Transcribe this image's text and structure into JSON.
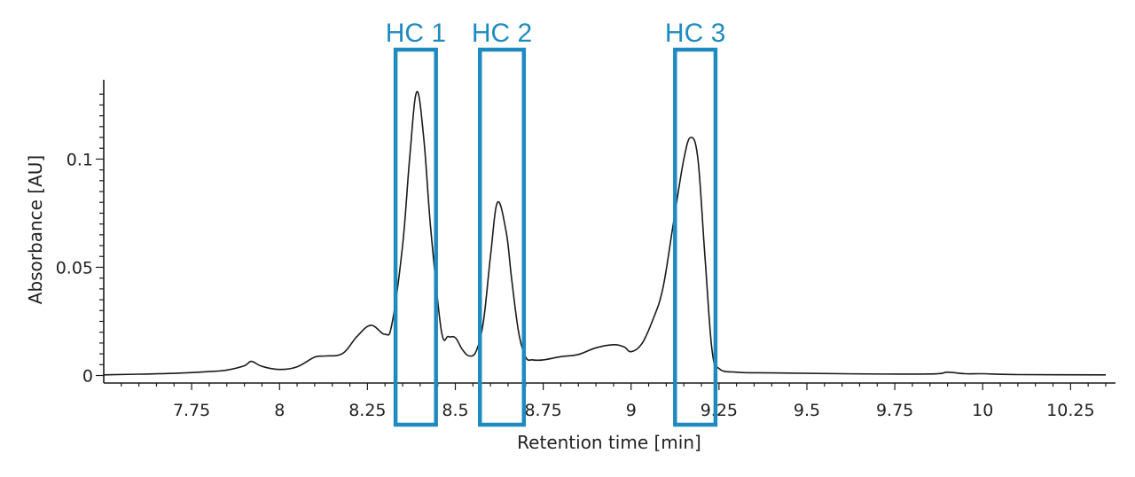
{
  "chart_data": {
    "type": "line",
    "title": "",
    "xlabel": "Retention time [min]",
    "ylabel": "Absorbance [AU]",
    "xlim": [
      7.5,
      10.35
    ],
    "ylim": [
      0,
      0.135
    ],
    "x_ticks": [
      {
        "value": 7.75,
        "label": "7.75"
      },
      {
        "value": 8,
        "label": "8"
      },
      {
        "value": 8.25,
        "label": "8.25"
      },
      {
        "value": 8.5,
        "label": "8.5"
      },
      {
        "value": 8.75,
        "label": "8.75"
      },
      {
        "value": 9,
        "label": "9"
      },
      {
        "value": 9.25,
        "label": "9.25"
      },
      {
        "value": 9.5,
        "label": "9.5"
      },
      {
        "value": 9.75,
        "label": "9.75"
      },
      {
        "value": 10,
        "label": "10"
      },
      {
        "value": 10.25,
        "label": "10.25"
      }
    ],
    "y_ticks": [
      {
        "value": 0,
        "label": "0"
      },
      {
        "value": 0.05,
        "label": "0.05"
      },
      {
        "value": 0.1,
        "label": "0.1"
      }
    ],
    "grid": false,
    "series": [
      {
        "color": "#1a1a1a",
        "x": [
          7.5,
          7.6,
          7.7,
          7.8,
          7.85,
          7.9,
          7.92,
          7.95,
          8.0,
          8.05,
          8.1,
          8.13,
          8.18,
          8.22,
          8.26,
          8.3,
          8.32,
          8.35,
          8.37,
          8.39,
          8.41,
          8.43,
          8.46,
          8.48,
          8.5,
          8.52,
          8.54,
          8.56,
          8.58,
          8.6,
          8.62,
          8.645,
          8.66,
          8.68,
          8.7,
          8.72,
          8.75,
          8.8,
          8.85,
          8.9,
          8.95,
          8.98,
          9.0,
          9.03,
          9.06,
          9.09,
          9.12,
          9.15,
          9.17,
          9.19,
          9.21,
          9.23,
          9.25,
          9.3,
          9.4,
          9.6,
          9.85,
          9.9,
          9.95,
          10.0,
          10.1,
          10.35
        ],
        "y": [
          0.0003,
          0.0006,
          0.001,
          0.0018,
          0.0025,
          0.0045,
          0.0065,
          0.0042,
          0.0028,
          0.004,
          0.0085,
          0.009,
          0.0102,
          0.018,
          0.0232,
          0.019,
          0.024,
          0.06,
          0.1,
          0.131,
          0.11,
          0.068,
          0.021,
          0.018,
          0.0175,
          0.012,
          0.009,
          0.0115,
          0.025,
          0.055,
          0.08,
          0.066,
          0.045,
          0.02,
          0.0085,
          0.0072,
          0.0072,
          0.0087,
          0.0097,
          0.0128,
          0.0142,
          0.0132,
          0.011,
          0.0145,
          0.025,
          0.04,
          0.07,
          0.1,
          0.11,
          0.1,
          0.055,
          0.012,
          0.0032,
          0.0015,
          0.0012,
          0.0008,
          0.0007,
          0.0015,
          0.0008,
          0.0008,
          0.0004,
          0.0003
        ]
      }
    ],
    "regions": [
      {
        "label": "HC 1",
        "x_start": 8.33,
        "x_end": 8.445
      },
      {
        "label": "HC 2",
        "x_start": 8.57,
        "x_end": 8.695
      },
      {
        "label": "HC 3",
        "x_start": 9.125,
        "x_end": 9.24
      }
    ],
    "region_color": "#1f8ac0"
  }
}
